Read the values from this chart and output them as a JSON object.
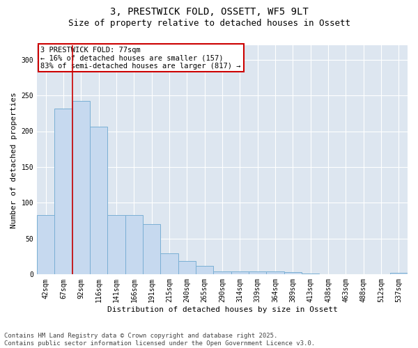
{
  "title1": "3, PRESTWICK FOLD, OSSETT, WF5 9LT",
  "title2": "Size of property relative to detached houses in Ossett",
  "xlabel": "Distribution of detached houses by size in Ossett",
  "ylabel": "Number of detached properties",
  "categories": [
    "42sqm",
    "67sqm",
    "92sqm",
    "116sqm",
    "141sqm",
    "166sqm",
    "191sqm",
    "215sqm",
    "240sqm",
    "265sqm",
    "290sqm",
    "314sqm",
    "339sqm",
    "364sqm",
    "389sqm",
    "413sqm",
    "438sqm",
    "463sqm",
    "488sqm",
    "512sqm",
    "537sqm"
  ],
  "values": [
    83,
    232,
    242,
    206,
    83,
    83,
    70,
    29,
    19,
    12,
    4,
    4,
    4,
    4,
    3,
    1,
    0,
    0,
    0,
    0,
    2
  ],
  "bar_color": "#c6d9ef",
  "bar_edge_color": "#7aafd4",
  "vline_x": 1.5,
  "vline_color": "#cc0000",
  "annotation_text": "3 PRESTWICK FOLD: 77sqm\n← 16% of detached houses are smaller (157)\n83% of semi-detached houses are larger (817) →",
  "annotation_box_color": "#ffffff",
  "annotation_box_edge": "#cc0000",
  "ylim": [
    0,
    320
  ],
  "yticks": [
    0,
    50,
    100,
    150,
    200,
    250,
    300
  ],
  "fig_bg_color": "#ffffff",
  "plot_bg_color": "#dde6f0",
  "footer_text": "Contains HM Land Registry data © Crown copyright and database right 2025.\nContains public sector information licensed under the Open Government Licence v3.0.",
  "title1_fontsize": 10,
  "title2_fontsize": 9,
  "xlabel_fontsize": 8,
  "ylabel_fontsize": 8,
  "tick_fontsize": 7,
  "annotation_fontsize": 7.5,
  "footer_fontsize": 6.5
}
